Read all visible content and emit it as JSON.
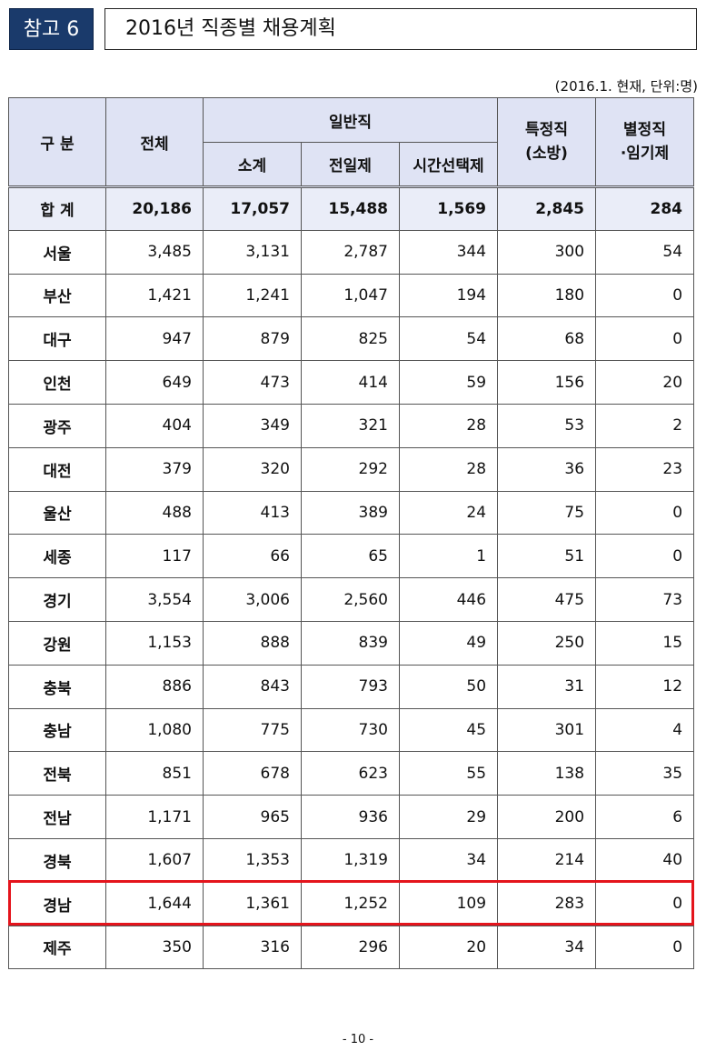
{
  "header": {
    "badge": "참고 6",
    "title": "2016년 직종별 채용계획"
  },
  "note": "(2016.1. 현재, 단위:명)",
  "columns": {
    "category": "구 분",
    "total": "전체",
    "general": "일반직",
    "subtotal": "소계",
    "fulltime": "전일제",
    "parttime": "시간선택제",
    "special": "특정직\n(소방)",
    "other": "별정직\n·임기제"
  },
  "rows": [
    {
      "region": "합 계",
      "total": "20,186",
      "subtotal": "17,057",
      "fulltime": "15,488",
      "parttime": "1,569",
      "special": "2,845",
      "other": "284"
    },
    {
      "region": "서울",
      "total": "3,485",
      "subtotal": "3,131",
      "fulltime": "2,787",
      "parttime": "344",
      "special": "300",
      "other": "54"
    },
    {
      "region": "부산",
      "total": "1,421",
      "subtotal": "1,241",
      "fulltime": "1,047",
      "parttime": "194",
      "special": "180",
      "other": "0"
    },
    {
      "region": "대구",
      "total": "947",
      "subtotal": "879",
      "fulltime": "825",
      "parttime": "54",
      "special": "68",
      "other": "0"
    },
    {
      "region": "인천",
      "total": "649",
      "subtotal": "473",
      "fulltime": "414",
      "parttime": "59",
      "special": "156",
      "other": "20"
    },
    {
      "region": "광주",
      "total": "404",
      "subtotal": "349",
      "fulltime": "321",
      "parttime": "28",
      "special": "53",
      "other": "2"
    },
    {
      "region": "대전",
      "total": "379",
      "subtotal": "320",
      "fulltime": "292",
      "parttime": "28",
      "special": "36",
      "other": "23"
    },
    {
      "region": "울산",
      "total": "488",
      "subtotal": "413",
      "fulltime": "389",
      "parttime": "24",
      "special": "75",
      "other": "0"
    },
    {
      "region": "세종",
      "total": "117",
      "subtotal": "66",
      "fulltime": "65",
      "parttime": "1",
      "special": "51",
      "other": "0"
    },
    {
      "region": "경기",
      "total": "3,554",
      "subtotal": "3,006",
      "fulltime": "2,560",
      "parttime": "446",
      "special": "475",
      "other": "73"
    },
    {
      "region": "강원",
      "total": "1,153",
      "subtotal": "888",
      "fulltime": "839",
      "parttime": "49",
      "special": "250",
      "other": "15"
    },
    {
      "region": "충북",
      "total": "886",
      "subtotal": "843",
      "fulltime": "793",
      "parttime": "50",
      "special": "31",
      "other": "12"
    },
    {
      "region": "충남",
      "total": "1,080",
      "subtotal": "775",
      "fulltime": "730",
      "parttime": "45",
      "special": "301",
      "other": "4"
    },
    {
      "region": "전북",
      "total": "851",
      "subtotal": "678",
      "fulltime": "623",
      "parttime": "55",
      "special": "138",
      "other": "35"
    },
    {
      "region": "전남",
      "total": "1,171",
      "subtotal": "965",
      "fulltime": "936",
      "parttime": "29",
      "special": "200",
      "other": "6"
    },
    {
      "region": "경북",
      "total": "1,607",
      "subtotal": "1,353",
      "fulltime": "1,319",
      "parttime": "34",
      "special": "214",
      "other": "40"
    },
    {
      "region": "경남",
      "total": "1,644",
      "subtotal": "1,361",
      "fulltime": "1,252",
      "parttime": "109",
      "special": "283",
      "other": "0"
    },
    {
      "region": "제주",
      "total": "350",
      "subtotal": "316",
      "fulltime": "296",
      "parttime": "20",
      "special": "34",
      "other": "0"
    }
  ],
  "highlight_color": "#e4141c",
  "badge_color": "#1a3a6b",
  "page_number": "- 10 -"
}
